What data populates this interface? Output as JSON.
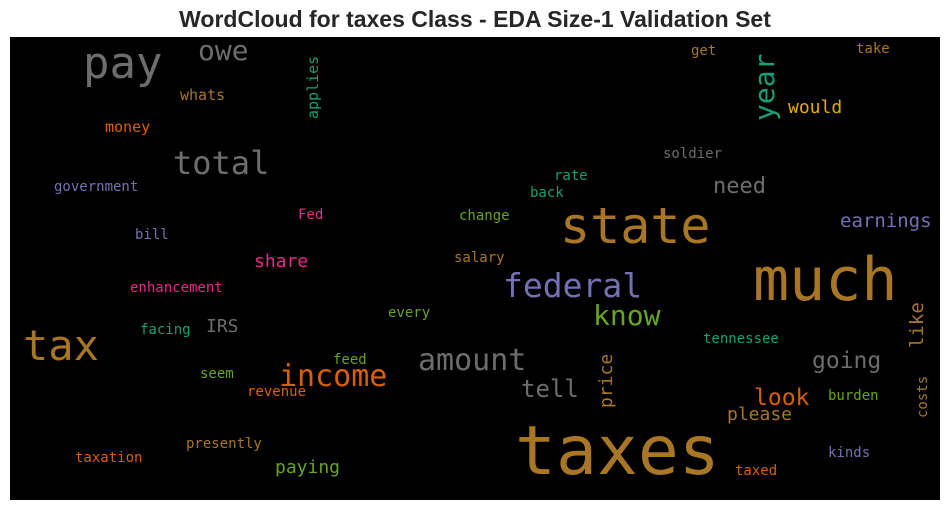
{
  "title": "WordCloud for taxes Class - EDA Size-1 Validation Set",
  "colors": {
    "brown": "#a97626",
    "gray": "#6d6d6d",
    "green": "#1b9e77",
    "olive": "#66a61e",
    "orange": "#d95f02",
    "purple": "#7570b3",
    "pink": "#e7298a",
    "gold": "#e6ab02"
  },
  "words": [
    {
      "text": "pay",
      "color": "gray"
    },
    {
      "text": "owe",
      "color": "gray"
    },
    {
      "text": "applies",
      "color": "green"
    },
    {
      "text": "whats",
      "color": "brown"
    },
    {
      "text": "money",
      "color": "orange"
    },
    {
      "text": "total",
      "color": "gray"
    },
    {
      "text": "government",
      "color": "purple"
    },
    {
      "text": "Fed",
      "color": "pink"
    },
    {
      "text": "bill",
      "color": "purple"
    },
    {
      "text": "share",
      "color": "pink"
    },
    {
      "text": "enhancement",
      "color": "pink"
    },
    {
      "text": "tax",
      "color": "brown"
    },
    {
      "text": "facing",
      "color": "green"
    },
    {
      "text": "IRS",
      "color": "gray"
    },
    {
      "text": "seem",
      "color": "olive"
    },
    {
      "text": "revenue",
      "color": "orange"
    },
    {
      "text": "income",
      "color": "orange"
    },
    {
      "text": "feed",
      "color": "olive"
    },
    {
      "text": "every",
      "color": "olive"
    },
    {
      "text": "presently",
      "color": "brown"
    },
    {
      "text": "taxation",
      "color": "orange"
    },
    {
      "text": "paying",
      "color": "olive"
    },
    {
      "text": "get",
      "color": "brown"
    },
    {
      "text": "take",
      "color": "brown"
    },
    {
      "text": "year",
      "color": "green"
    },
    {
      "text": "would",
      "color": "gold"
    },
    {
      "text": "soldier",
      "color": "gray"
    },
    {
      "text": "rate",
      "color": "green"
    },
    {
      "text": "back",
      "color": "green"
    },
    {
      "text": "need",
      "color": "gray"
    },
    {
      "text": "change",
      "color": "olive"
    },
    {
      "text": "state",
      "color": "brown"
    },
    {
      "text": "earnings",
      "color": "purple"
    },
    {
      "text": "salary",
      "color": "brown"
    },
    {
      "text": "much",
      "color": "brown"
    },
    {
      "text": "federal",
      "color": "purple"
    },
    {
      "text": "know",
      "color": "olive"
    },
    {
      "text": "like",
      "color": "brown"
    },
    {
      "text": "amount",
      "color": "gray"
    },
    {
      "text": "tennessee",
      "color": "green"
    },
    {
      "text": "going",
      "color": "gray"
    },
    {
      "text": "price",
      "color": "brown"
    },
    {
      "text": "tell",
      "color": "gray"
    },
    {
      "text": "look",
      "color": "orange"
    },
    {
      "text": "please",
      "color": "brown"
    },
    {
      "text": "burden",
      "color": "olive"
    },
    {
      "text": "costs",
      "color": "brown"
    },
    {
      "text": "taxes",
      "color": "brown"
    },
    {
      "text": "kinds",
      "color": "purple"
    },
    {
      "text": "taxed",
      "color": "orange"
    }
  ]
}
